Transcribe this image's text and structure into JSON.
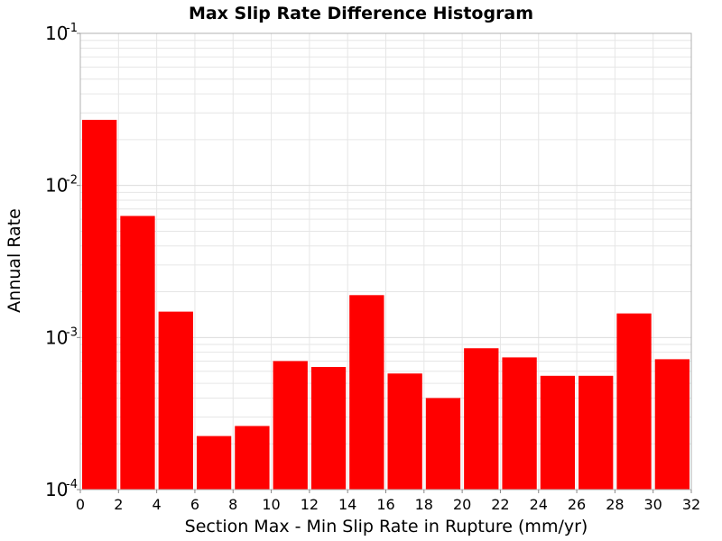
{
  "chart_data": {
    "type": "bar",
    "title": "Max Slip Rate Difference Histogram",
    "xlabel": "Section Max - Min Slip Rate in Rupture (mm/yr)",
    "ylabel": "Annual Rate",
    "yscale": "log",
    "xlim": [
      0,
      32
    ],
    "ylim": [
      0.0001,
      0.1
    ],
    "bin_width": 2,
    "x_ticks": [
      "0",
      "2",
      "4",
      "6",
      "8",
      "10",
      "12",
      "14",
      "16",
      "18",
      "20",
      "22",
      "24",
      "26",
      "28",
      "30",
      "32"
    ],
    "y_ticks": [
      {
        "base": "10",
        "exp": "-4"
      },
      {
        "base": "10",
        "exp": "-3"
      },
      {
        "base": "10",
        "exp": "-2"
      },
      {
        "base": "10",
        "exp": "-1"
      }
    ],
    "bins": [
      {
        "x0": 0,
        "x1": 2,
        "value": 0.027
      },
      {
        "x0": 2,
        "x1": 4,
        "value": 0.0063
      },
      {
        "x0": 4,
        "x1": 6,
        "value": 0.00148
      },
      {
        "x0": 6,
        "x1": 8,
        "value": 0.000225
      },
      {
        "x0": 8,
        "x1": 10,
        "value": 0.000262
      },
      {
        "x0": 10,
        "x1": 12,
        "value": 0.0007
      },
      {
        "x0": 12,
        "x1": 14,
        "value": 0.00064
      },
      {
        "x0": 14,
        "x1": 16,
        "value": 0.0019
      },
      {
        "x0": 16,
        "x1": 18,
        "value": 0.00058
      },
      {
        "x0": 18,
        "x1": 20,
        "value": 0.0004
      },
      {
        "x0": 20,
        "x1": 22,
        "value": 0.00085
      },
      {
        "x0": 22,
        "x1": 24,
        "value": 0.00074
      },
      {
        "x0": 24,
        "x1": 26,
        "value": 0.00056
      },
      {
        "x0": 26,
        "x1": 28,
        "value": 0.00056
      },
      {
        "x0": 28,
        "x1": 30,
        "value": 0.00144
      },
      {
        "x0": 30,
        "x1": 32,
        "value": 0.00072
      }
    ],
    "grid": true,
    "colors": {
      "bar": "#ff0000",
      "grid": "#e6e6e6",
      "frame": "#b0b0b0",
      "background": "#ffffff"
    }
  }
}
